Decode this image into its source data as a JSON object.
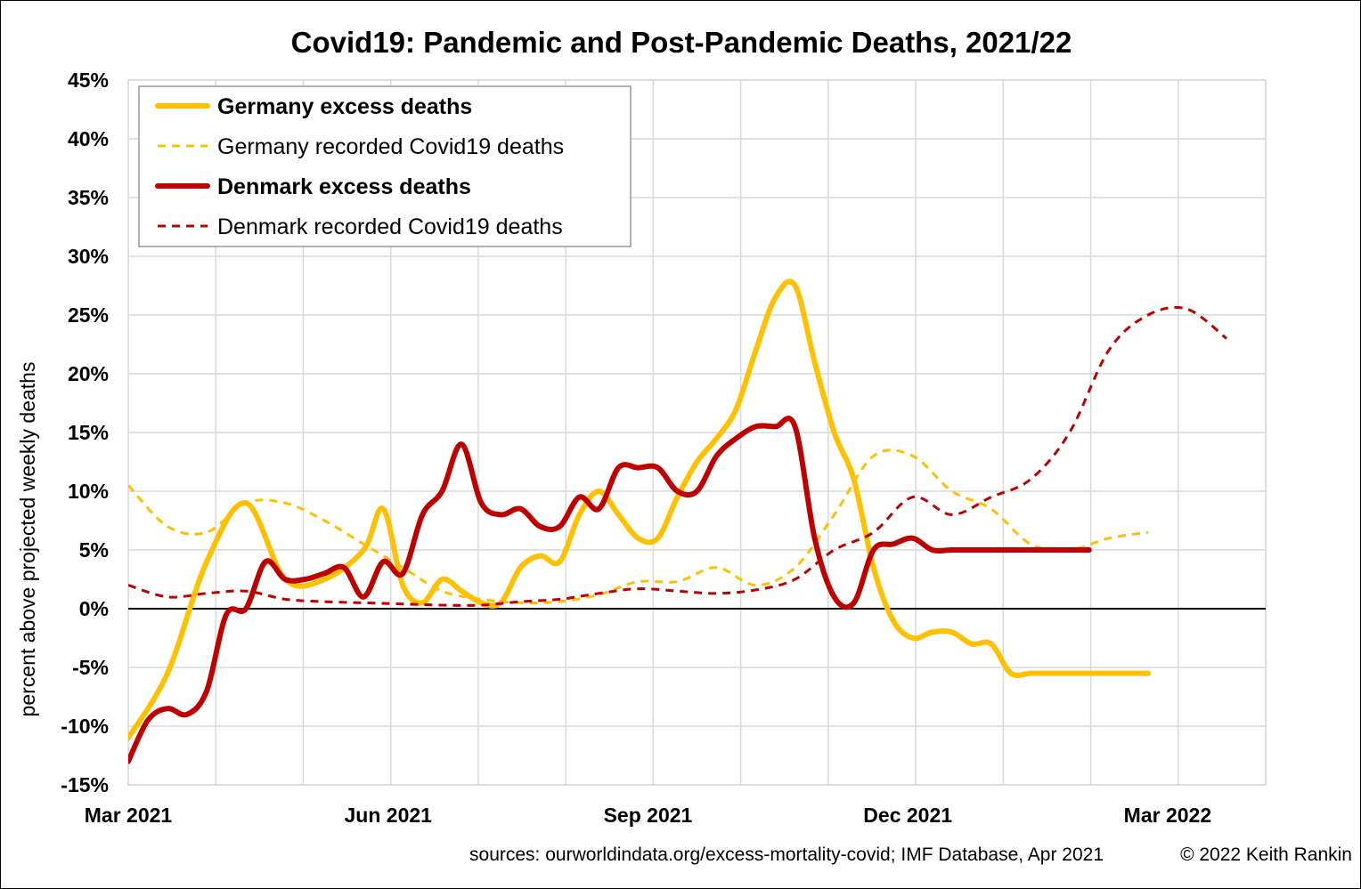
{
  "title": {
    "prefix": "Covid19",
    "main": ": Pandemic and Post-Pandemic Deaths, 2021/22"
  },
  "footer": {
    "sources": "sources: ourworldindata.org/excess-mortality-covid; IMF Database, Apr 2021",
    "copyright": "© 2022 Keith Rankin"
  },
  "colors": {
    "germany": "#FFC000",
    "denmark": "#C00000",
    "grid": "#D9D9D9",
    "zero_line": "#000000"
  },
  "chart_data": {
    "type": "line",
    "title": "Covid19: Pandemic and Post-Pandemic Deaths, 2021/22",
    "xlabel": "",
    "ylabel": "percent above projected weekly deaths",
    "x_unit": "weeks from Mar 2021",
    "xlim": [
      0,
      58
    ],
    "ylim": [
      -15,
      45
    ],
    "y_ticks": [
      -15,
      -10,
      -5,
      0,
      5,
      10,
      15,
      20,
      25,
      30,
      35,
      40,
      45
    ],
    "y_tick_labels": [
      "-15%",
      "-10%",
      "-5%",
      "0%",
      "5%",
      "10%",
      "15%",
      "20%",
      "25%",
      "30%",
      "35%",
      "40%",
      "45%"
    ],
    "x_tick_labels": [
      {
        "x": 0,
        "label": "Mar 2021"
      },
      {
        "x": 13.25,
        "label": "Jun 2021"
      },
      {
        "x": 26.5,
        "label": "Sep 2021"
      },
      {
        "x": 39.75,
        "label": "Dec 2021"
      },
      {
        "x": 53,
        "label": "Mar 2022"
      }
    ],
    "legend_position": "top-left",
    "grid": true,
    "series": [
      {
        "name": "Germany excess deaths",
        "style": "solid-thick",
        "color": "#FFC000",
        "legend_bold": true,
        "x": [
          0,
          2,
          4,
          6,
          8,
          10,
          12,
          13,
          14,
          15,
          16,
          17,
          18,
          19,
          20,
          21,
          22,
          23,
          24,
          25,
          26,
          27,
          28,
          29,
          30,
          31,
          32,
          33,
          34,
          35,
          36,
          37,
          38,
          39,
          40,
          41,
          42,
          43,
          44,
          45,
          46,
          47,
          48,
          49,
          50,
          51,
          52
        ],
        "y": [
          -11,
          -5.5,
          4,
          9,
          2.5,
          2.5,
          5,
          8.5,
          2,
          0.5,
          2.5,
          1.5,
          0.5,
          0.5,
          3.5,
          4.5,
          4,
          8,
          10,
          8,
          6,
          6,
          9.5,
          12.5,
          14.5,
          17,
          22,
          26.5,
          27.5,
          21,
          15,
          11,
          3.5,
          -1,
          -2.5,
          -2,
          -2,
          -3,
          -3,
          -5.5,
          -5.5,
          -5.5,
          -5.5,
          -5.5,
          -5.5,
          -5.5,
          -5.5
        ]
      },
      {
        "name": "Germany recorded Covid19 deaths",
        "style": "dashed",
        "color": "#FFC000",
        "legend_bold": false,
        "x": [
          0,
          2,
          4,
          6,
          8,
          10,
          12,
          14,
          16,
          18,
          20,
          22,
          24,
          26,
          28,
          30,
          32,
          34,
          36,
          38,
          40,
          42,
          44,
          46,
          48,
          50,
          52
        ],
        "y": [
          10.5,
          7,
          6.5,
          9,
          9,
          7.5,
          5.5,
          3.5,
          1.5,
          0.8,
          0.5,
          0.6,
          1.2,
          2.3,
          2.3,
          3.5,
          2,
          3.5,
          8,
          13,
          13,
          10,
          8.5,
          5.5,
          5,
          6,
          6.5
        ]
      },
      {
        "name": "Denmark excess deaths",
        "style": "solid-thick",
        "color": "#C00000",
        "legend_bold": true,
        "x": [
          0,
          1,
          2,
          3,
          4,
          5,
          6,
          7,
          8,
          9,
          10,
          11,
          12,
          13,
          14,
          15,
          16,
          17,
          18,
          19,
          20,
          21,
          22,
          23,
          24,
          25,
          26,
          27,
          28,
          29,
          30,
          31,
          32,
          33,
          34,
          35,
          36,
          37,
          38,
          39,
          40,
          41,
          42,
          43,
          44,
          45,
          46,
          47,
          48,
          49
        ],
        "y": [
          -13,
          -9.5,
          -8.5,
          -9,
          -7,
          -0.5,
          0,
          4,
          2.5,
          2.5,
          3,
          3.5,
          1,
          4,
          3,
          8,
          10,
          14,
          9,
          8,
          8.5,
          7,
          7,
          9.5,
          8.5,
          12,
          12,
          12,
          10,
          10,
          13,
          14.5,
          15.5,
          15.5,
          15.5,
          6,
          1,
          0.5,
          5,
          5.5,
          6,
          5,
          5,
          5,
          5,
          5,
          5,
          5,
          5,
          5
        ]
      },
      {
        "name": "Denmark recorded Covid19 deaths",
        "style": "dashed",
        "color": "#C00000",
        "legend_bold": false,
        "x": [
          0,
          2,
          4,
          6,
          8,
          10,
          12,
          14,
          16,
          18,
          20,
          22,
          24,
          26,
          28,
          30,
          32,
          34,
          36,
          38,
          40,
          42,
          44,
          46,
          48,
          50,
          52,
          54,
          56
        ],
        "y": [
          2,
          1,
          1.3,
          1.5,
          0.8,
          0.6,
          0.5,
          0.4,
          0.3,
          0.3,
          0.6,
          0.8,
          1.3,
          1.7,
          1.5,
          1.3,
          1.6,
          2.5,
          5,
          6.5,
          9.5,
          8,
          9.5,
          11,
          15,
          22,
          25,
          25.5,
          23
        ]
      }
    ]
  }
}
